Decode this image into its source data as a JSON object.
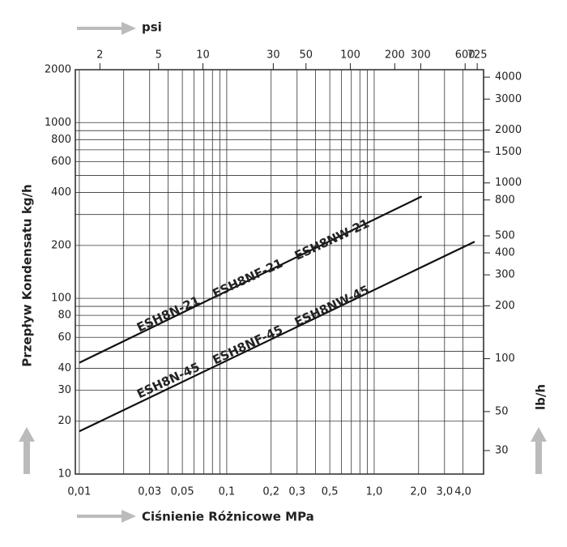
{
  "chart_data": {
    "type": "line",
    "x_label": "Ciśnienie Różnicowe MPa",
    "y_label": "Przepływ Kondensatu kg/h",
    "x2_label": "psi",
    "y2_label": "lb/h",
    "xscale": "log",
    "yscale": "log",
    "grid": true,
    "xlim": [
      0.0094,
      5.52
    ],
    "ylim": [
      10,
      2000
    ],
    "x2lim": [
      1.363,
      800.6
    ],
    "y2lim": [
      22.05,
      4409
    ],
    "xticks": [
      {
        "value": 0.01,
        "label": "0,01"
      },
      {
        "value": 0.03,
        "label": "0,03"
      },
      {
        "value": 0.05,
        "label": "0,05"
      },
      {
        "value": 0.1,
        "label": "0,1"
      },
      {
        "value": 0.2,
        "label": "0,2"
      },
      {
        "value": 0.3,
        "label": "0,3"
      },
      {
        "value": 0.5,
        "label": "0,5"
      },
      {
        "value": 1.0,
        "label": "1,0"
      },
      {
        "value": 2.0,
        "label": "2,0"
      },
      {
        "value": 3.0,
        "label": "3,0"
      },
      {
        "value": 4.0,
        "label": "4,0"
      }
    ],
    "x_minor_ticks": [
      0.02,
      0.04,
      0.06,
      0.07,
      0.08,
      0.09,
      0.4,
      0.6,
      0.7,
      0.8,
      0.9
    ],
    "yticks": [
      10,
      20,
      30,
      40,
      60,
      80,
      100,
      200,
      400,
      600,
      800,
      1000,
      2000
    ],
    "y_minor_ticks": [
      50,
      70,
      90,
      300,
      500,
      700,
      900
    ],
    "x2ticks": [
      2,
      5,
      10,
      30,
      50,
      100,
      200,
      300,
      600,
      725
    ],
    "y2ticks": [
      30,
      50,
      100,
      200,
      300,
      400,
      500,
      800,
      1000,
      1500,
      2000,
      3000,
      4000
    ],
    "series": [
      {
        "name": "ESH8N-21 ESH8NF-21 ESH8NW-21",
        "color": "#111111",
        "x": [
          0.01,
          2.1
        ],
        "values": [
          43,
          380
        ]
      },
      {
        "name": "ESH8N-45 ESH8NF-45 ESH8NW-45",
        "color": "#111111",
        "x": [
          0.01,
          4.8
        ],
        "values": [
          17.5,
          210
        ]
      }
    ],
    "annotations": [
      "ESH8N-21",
      "ESH8NF-21",
      "ESH8NW-21",
      "ESH8N-45",
      "ESH8NF-45",
      "ESH8NW-45"
    ]
  }
}
